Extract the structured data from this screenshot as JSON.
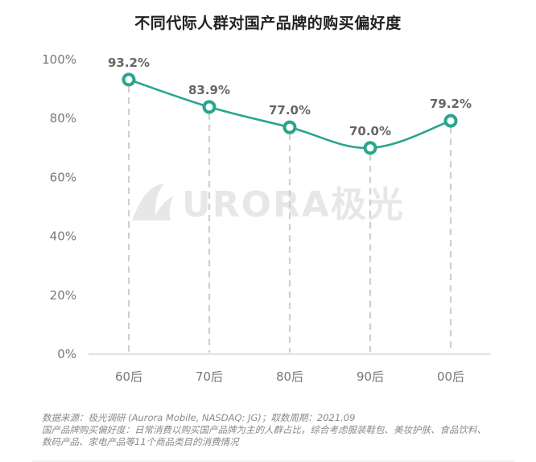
{
  "title": "不同代际人群对国产品牌的购买偏好度",
  "watermark": {
    "text": "URORA极光"
  },
  "colors": {
    "line": "#2aa58e",
    "grid": "#cfcfcf",
    "text": "#777777",
    "label": "#666666"
  },
  "chart_data": {
    "type": "line",
    "categories": [
      "60后",
      "70后",
      "80后",
      "90后",
      "00后"
    ],
    "series": [
      {
        "values": [
          93.2,
          83.9,
          77.0,
          70.0,
          79.2
        ]
      }
    ],
    "data_labels": [
      "93.2%",
      "83.9%",
      "77.0%",
      "70.0%",
      "79.2%"
    ],
    "yticks": [
      "0%",
      "20%",
      "40%",
      "60%",
      "80%",
      "100%"
    ],
    "ylim": [
      0,
      100
    ],
    "grid": "vertical-dashed"
  },
  "source": {
    "line1": "数据来源：极光调研 (Aurora Mobile, NASDAQ: JG)；取数周期：2021.09",
    "line2": "国产品牌购买偏好度：日常消费以购买国产品牌为主的人群占比，综合考虑服装鞋包、美妆护肤、食品饮料、",
    "line3": "数码产品、家电产品等11个商品类目的消费情况"
  }
}
